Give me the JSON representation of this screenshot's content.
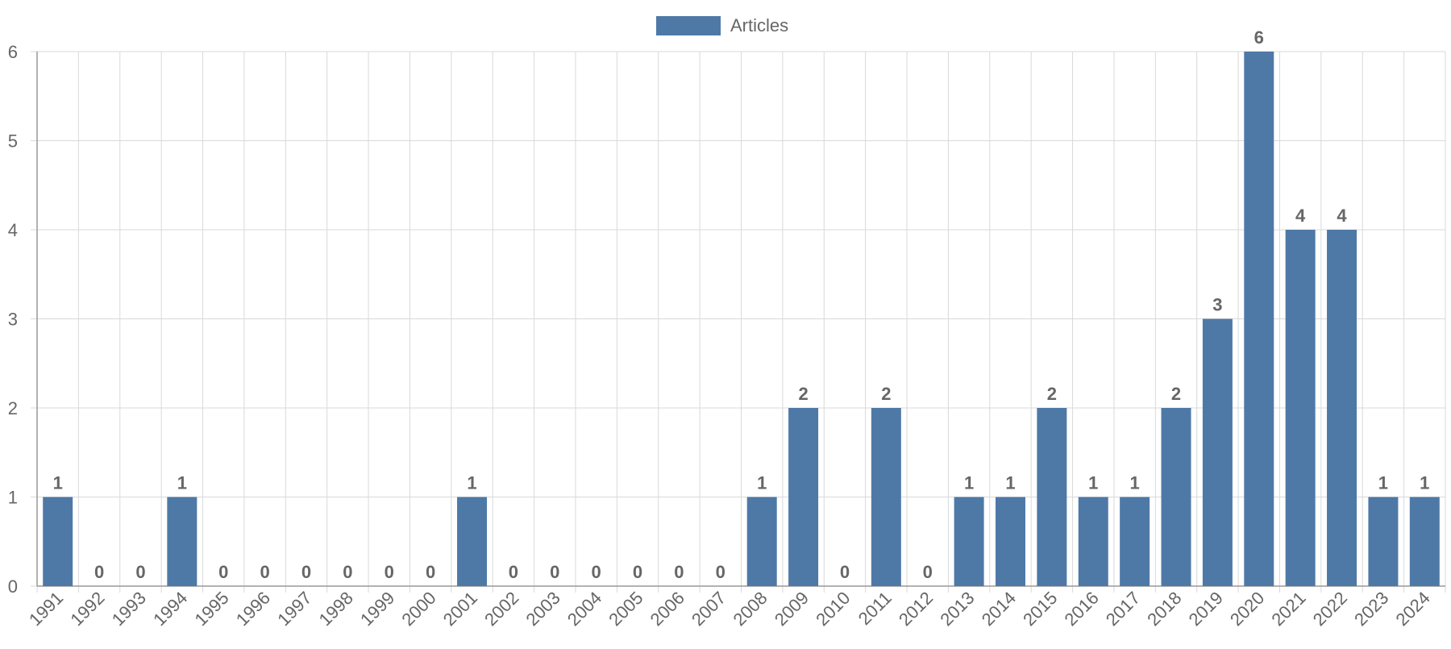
{
  "chart_data": {
    "type": "bar",
    "categories": [
      "1991",
      "1992",
      "1993",
      "1994",
      "1995",
      "1996",
      "1997",
      "1998",
      "1999",
      "2000",
      "2001",
      "2002",
      "2003",
      "2004",
      "2005",
      "2006",
      "2007",
      "2008",
      "2009",
      "2010",
      "2011",
      "2012",
      "2013",
      "2014",
      "2015",
      "2016",
      "2017",
      "2018",
      "2019",
      "2020",
      "2021",
      "2022",
      "2023",
      "2024"
    ],
    "series": [
      {
        "name": "Articles",
        "values": [
          1,
          0,
          0,
          1,
          0,
          0,
          0,
          0,
          0,
          0,
          1,
          0,
          0,
          0,
          0,
          0,
          0,
          1,
          2,
          0,
          2,
          0,
          1,
          1,
          2,
          1,
          1,
          2,
          3,
          6,
          4,
          4,
          1,
          1
        ]
      }
    ],
    "y_ticks": [
      "0",
      "1",
      "2",
      "3",
      "4",
      "5",
      "6"
    ],
    "ylim": [
      0,
      6
    ],
    "grid": true,
    "legend_position": "top-center",
    "data_labels": true,
    "x_tick_rotation": "45-degrees",
    "colors": {
      "bar": "#4e79a7",
      "grid": "#d9d9d9",
      "axis": "#999999",
      "text": "#666666"
    }
  }
}
